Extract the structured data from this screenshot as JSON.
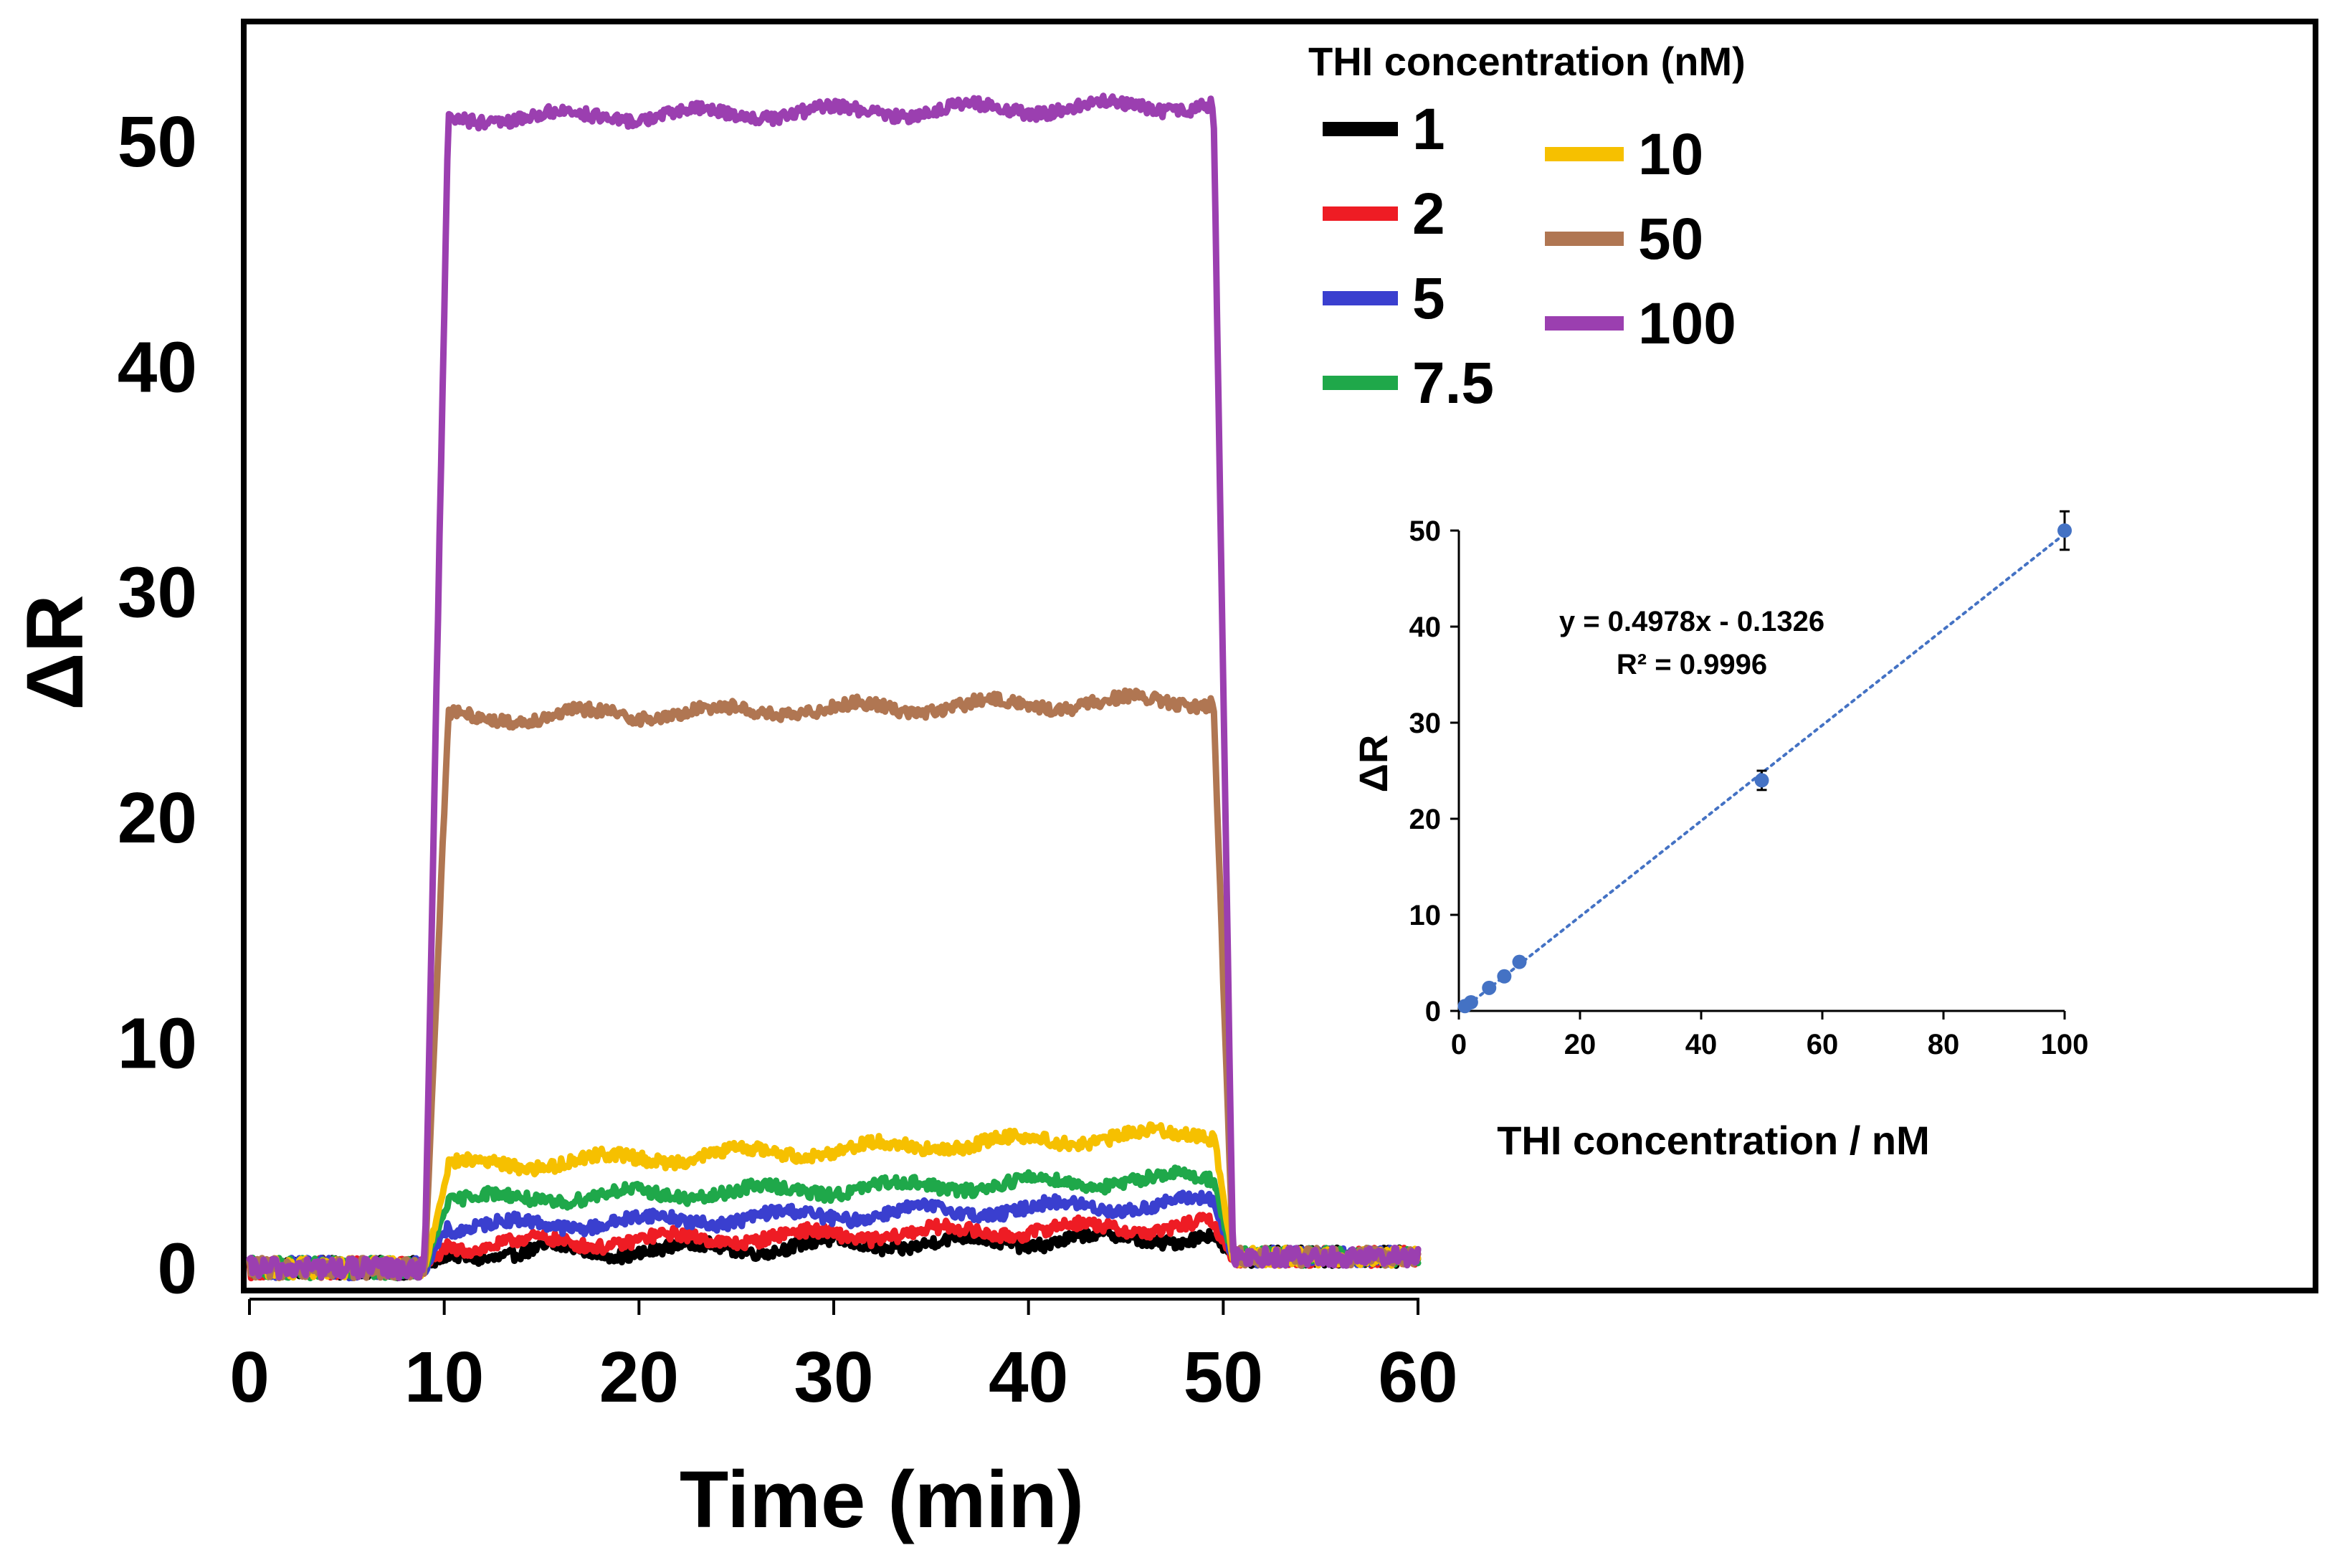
{
  "chart_data": [
    {
      "type": "line",
      "id": "main",
      "xlabel": "Time (min)",
      "ylabel": "ΔR",
      "xlim": [
        0,
        60
      ],
      "ylim": [
        -1,
        55
      ],
      "xticks": [
        0,
        10,
        20,
        30,
        40,
        50,
        60
      ],
      "yticks": [
        0,
        10,
        20,
        30,
        40,
        50
      ],
      "legend": {
        "title": "THI  concentration (nM)",
        "position": "top-right"
      },
      "profile": {
        "baseline_end_min": 9,
        "rise_end_min": 10.2,
        "fall_start_min": 49.5,
        "fall_end_min": 50.5,
        "end_min": 60
      },
      "series": [
        {
          "name": "1",
          "color": "#000000",
          "plateau_start": 0.6,
          "plateau_end": 1.4
        },
        {
          "name": "2",
          "color": "#ee1c24",
          "plateau_start": 1.0,
          "plateau_end": 1.9
        },
        {
          "name": "5",
          "color": "#3a3fcf",
          "plateau_start": 1.8,
          "plateau_end": 2.9
        },
        {
          "name": "7.5",
          "color": "#1fa84a",
          "plateau_start": 3.0,
          "plateau_end": 4.0
        },
        {
          "name": "10",
          "color": "#f6c000",
          "plateau_start": 4.5,
          "plateau_end": 6.0
        },
        {
          "name": "50",
          "color": "#b07652",
          "plateau_start": 24.4,
          "plateau_end": 25.2
        },
        {
          "name": "100",
          "color": "#9b3fb0",
          "plateau_start": 51.0,
          "plateau_end": 51.6
        }
      ]
    },
    {
      "type": "scatter",
      "id": "inset",
      "xlabel": "THI concentration / nM",
      "ylabel": "ΔR",
      "xlim": [
        0,
        100
      ],
      "ylim": [
        0,
        50
      ],
      "xticks": [
        0,
        20,
        40,
        60,
        80,
        100
      ],
      "yticks": [
        0,
        10,
        20,
        30,
        40,
        50
      ],
      "color": "#4472c4",
      "points": [
        {
          "x": 1,
          "y": 0.5,
          "err": 0.2
        },
        {
          "x": 2,
          "y": 0.9,
          "err": 0.2
        },
        {
          "x": 5,
          "y": 2.4,
          "err": 0.3
        },
        {
          "x": 7.5,
          "y": 3.6,
          "err": 0.3
        },
        {
          "x": 10,
          "y": 5.1,
          "err": 0.4
        },
        {
          "x": 50,
          "y": 24.0,
          "err": 1.0
        },
        {
          "x": 100,
          "y": 50.0,
          "err": 2.0
        }
      ],
      "trendline": {
        "slope": 0.4978,
        "intercept": -0.1326,
        "style": "dotted"
      },
      "equation": "y = 0.4978x - 0.1326",
      "r_squared": "R² = 0.9996"
    }
  ]
}
